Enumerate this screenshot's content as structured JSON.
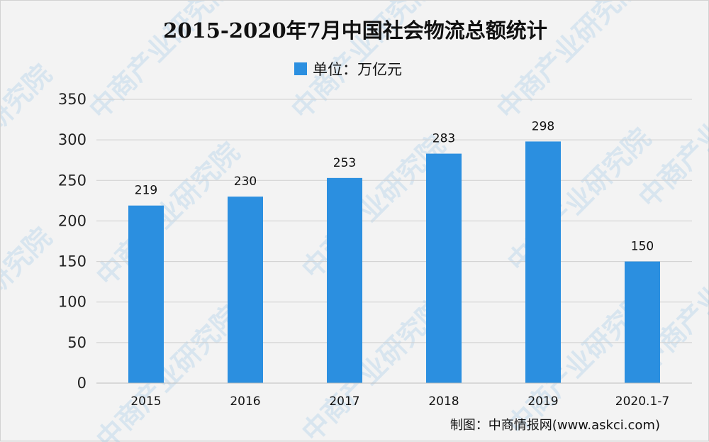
{
  "chart_data": {
    "type": "bar",
    "title": "2015-2020年7月中国社会物流总额统计",
    "legend": "单位：万亿元",
    "legend_position": "top-center",
    "categories": [
      "2015",
      "2016",
      "2017",
      "2018",
      "2019",
      "2020.1-7"
    ],
    "values": [
      219,
      230,
      253,
      283,
      298,
      150
    ],
    "value_labels": [
      "219",
      "230",
      "253",
      "283",
      "298",
      "150"
    ],
    "ylim": [
      0,
      350
    ],
    "yticks": [
      0,
      50,
      100,
      150,
      200,
      250,
      300,
      350
    ],
    "grid": true,
    "bar_color": "#2b8fe0",
    "source": "制图：中商情报网(www.askci.com)"
  },
  "watermark": {
    "text": "中商产业研究院",
    "color": "#2d8fd8"
  }
}
